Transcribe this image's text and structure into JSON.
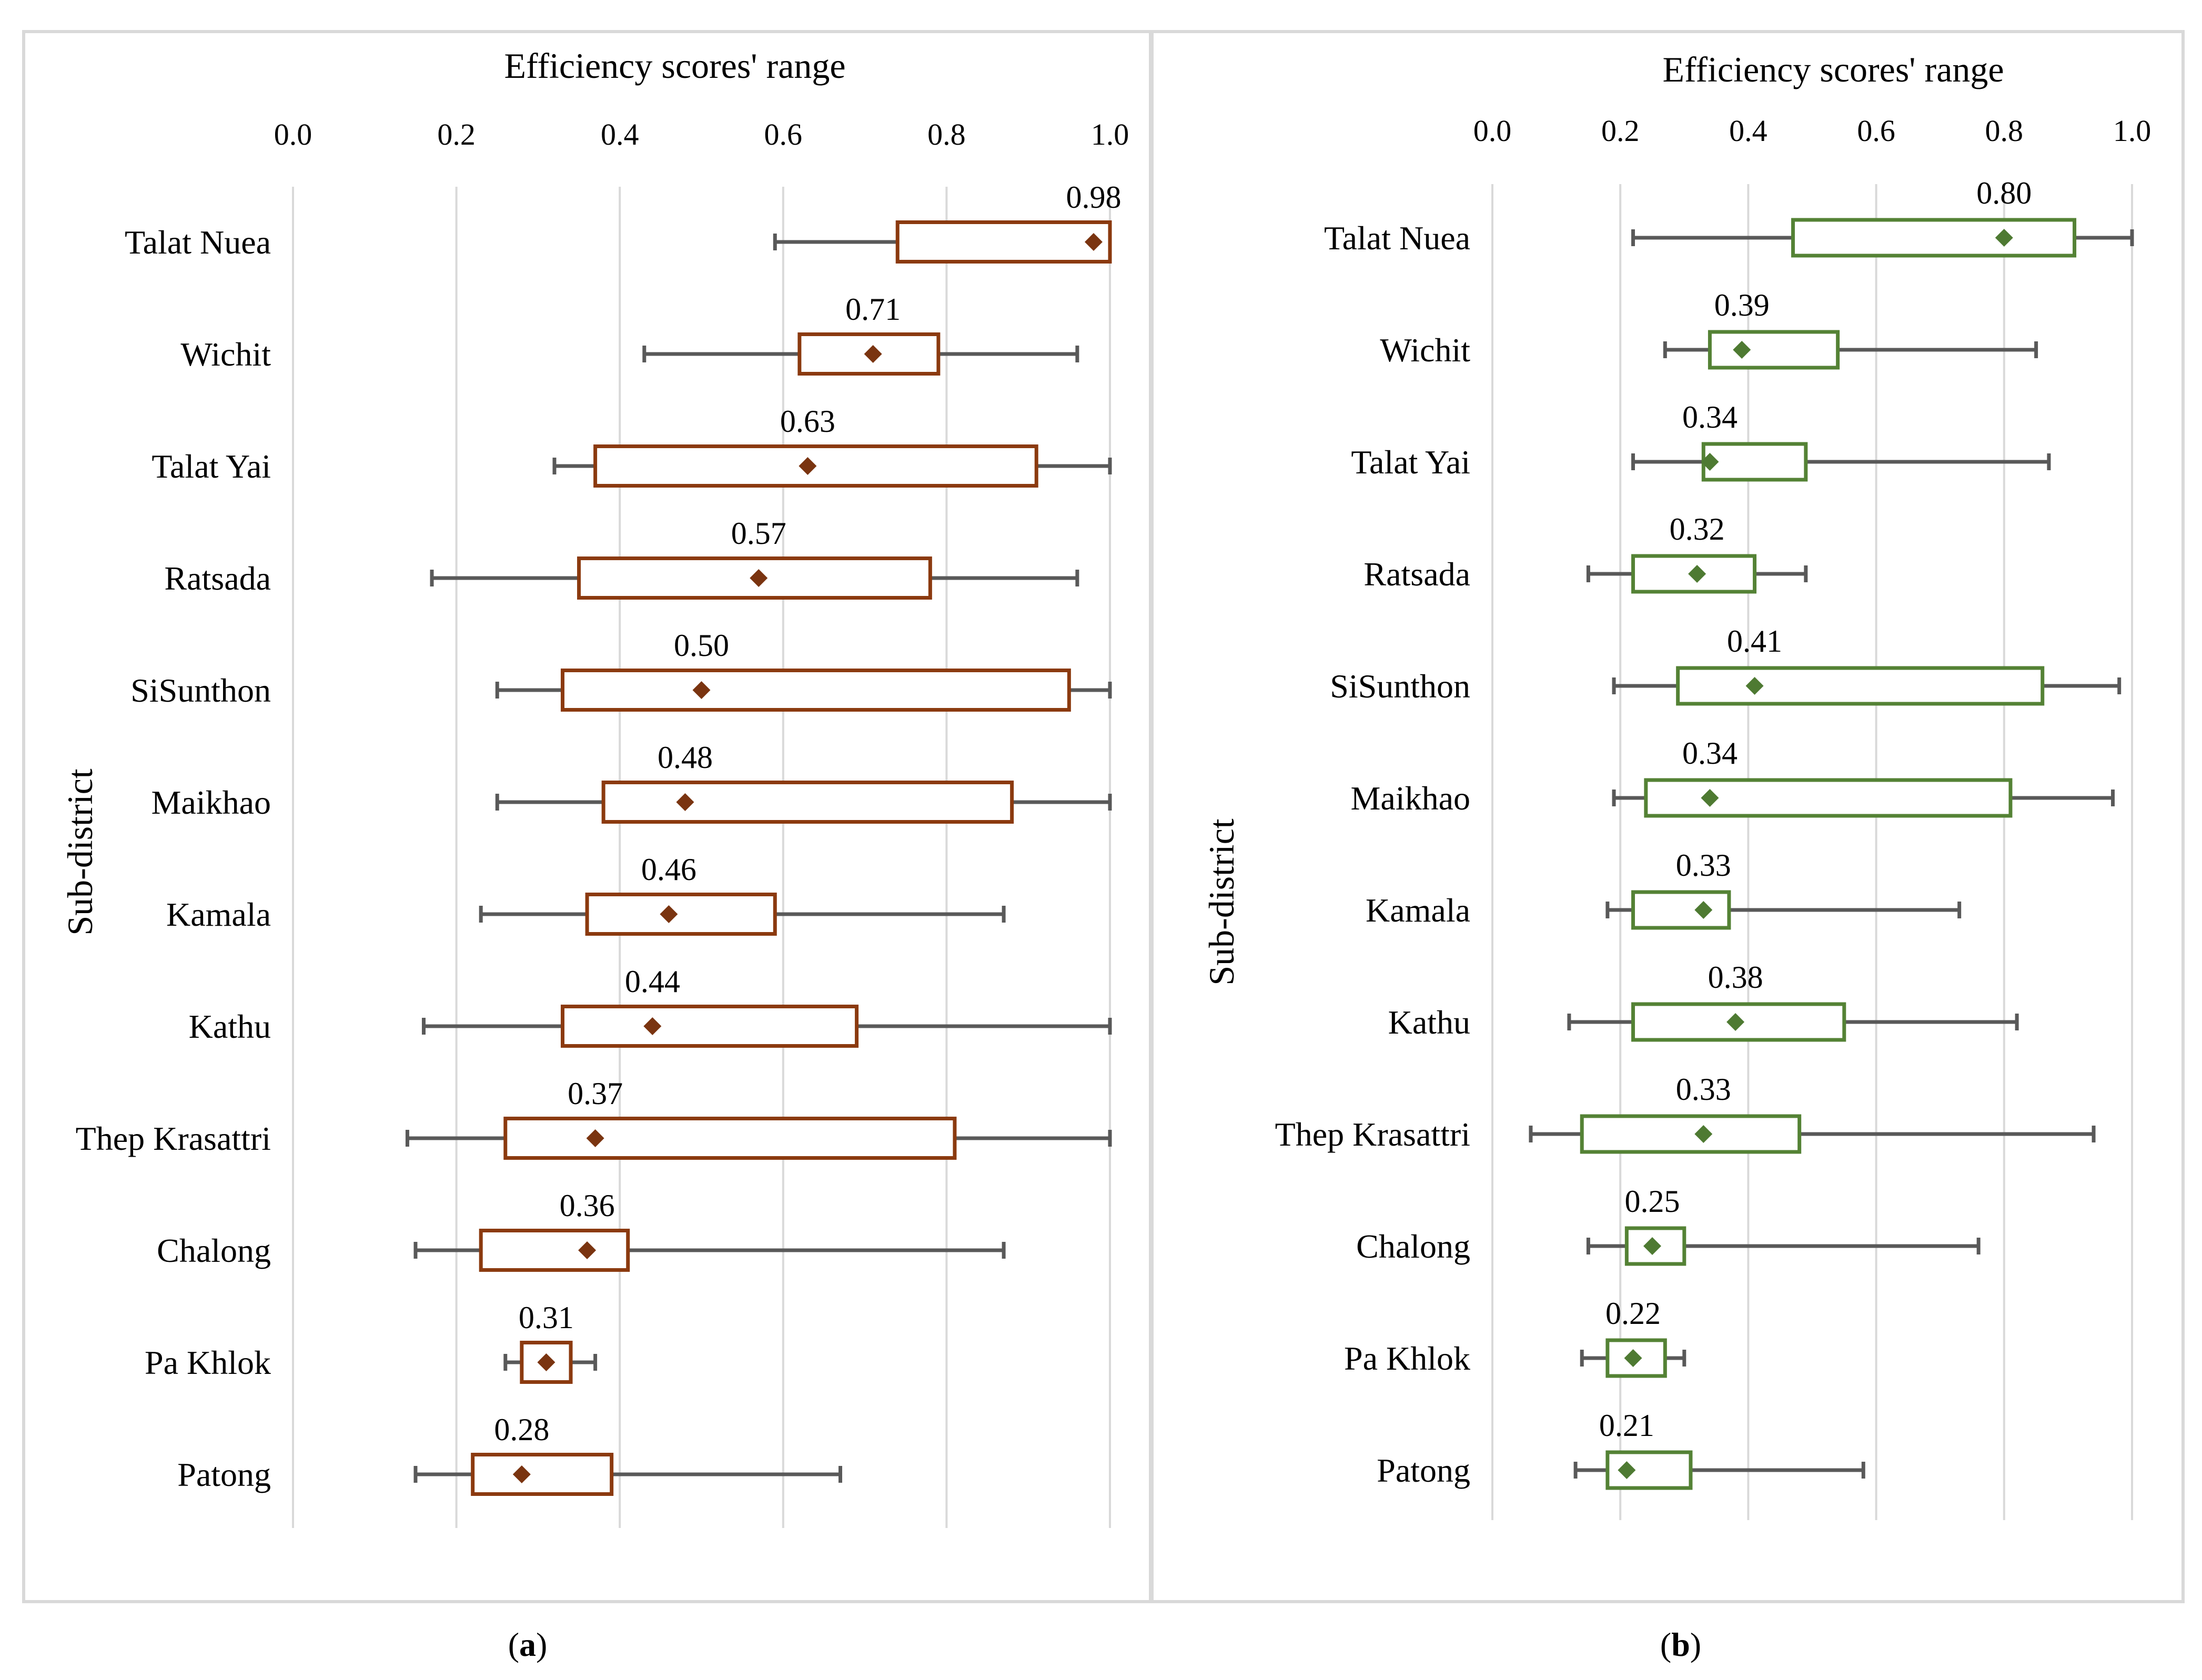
{
  "chart_data": [
    {
      "type": "box",
      "panel": "a",
      "title": "Efficiency scores' range",
      "xlabel": "Efficiency scores' range",
      "ylabel": "Sub-district",
      "xlim": [
        0.0,
        1.0
      ],
      "xticks": [
        "0.0",
        "0.2",
        "0.4",
        "0.6",
        "0.8",
        "1.0"
      ],
      "grid": true,
      "color": "#8B3A0F",
      "marker_color": "#7A3410",
      "whisker_color": "#595959",
      "categories": [
        "Talat Nuea",
        "Wichit",
        "Talat Yai",
        "Ratsada",
        "SiSunthon",
        "Maikhao",
        "Kamala",
        "Kathu",
        "Thep Krasattri",
        "Chalong",
        "Pa Khlok",
        "Patong"
      ],
      "boxes": [
        {
          "min": 0.59,
          "q1": 0.74,
          "q3": 1.0,
          "max": 1.0,
          "mean": 0.98,
          "label": "0.98"
        },
        {
          "min": 0.43,
          "q1": 0.62,
          "q3": 0.79,
          "max": 0.96,
          "mean": 0.71,
          "label": "0.71"
        },
        {
          "min": 0.32,
          "q1": 0.37,
          "q3": 0.91,
          "max": 1.0,
          "mean": 0.63,
          "label": "0.63"
        },
        {
          "min": 0.17,
          "q1": 0.35,
          "q3": 0.78,
          "max": 0.96,
          "mean": 0.57,
          "label": "0.57"
        },
        {
          "min": 0.25,
          "q1": 0.33,
          "q3": 0.95,
          "max": 1.0,
          "mean": 0.5,
          "label": "0.50"
        },
        {
          "min": 0.25,
          "q1": 0.38,
          "q3": 0.88,
          "max": 1.0,
          "mean": 0.48,
          "label": "0.48"
        },
        {
          "min": 0.23,
          "q1": 0.36,
          "q3": 0.59,
          "max": 0.87,
          "mean": 0.46,
          "label": "0.46"
        },
        {
          "min": 0.16,
          "q1": 0.33,
          "q3": 0.69,
          "max": 1.0,
          "mean": 0.44,
          "label": "0.44"
        },
        {
          "min": 0.14,
          "q1": 0.26,
          "q3": 0.81,
          "max": 1.0,
          "mean": 0.37,
          "label": "0.37"
        },
        {
          "min": 0.15,
          "q1": 0.23,
          "q3": 0.41,
          "max": 0.87,
          "mean": 0.36,
          "label": "0.36"
        },
        {
          "min": 0.26,
          "q1": 0.28,
          "q3": 0.34,
          "max": 0.37,
          "mean": 0.31,
          "label": "0.31"
        },
        {
          "min": 0.15,
          "q1": 0.22,
          "q3": 0.39,
          "max": 0.67,
          "mean": 0.28,
          "label": "0.28"
        }
      ]
    },
    {
      "type": "box",
      "panel": "b",
      "title": "Efficiency scores' range",
      "xlabel": "Efficiency scores' range",
      "ylabel": "Sub-district",
      "xlim": [
        0.0,
        1.0
      ],
      "xticks": [
        "0.0",
        "0.2",
        "0.4",
        "0.6",
        "0.8",
        "1.0"
      ],
      "grid": true,
      "color": "#548235",
      "marker_color": "#4E7A32",
      "whisker_color": "#595959",
      "categories": [
        "Talat Nuea",
        "Wichit",
        "Talat Yai",
        "Ratsada",
        "SiSunthon",
        "Maikhao",
        "Kamala",
        "Kathu",
        "Thep Krasattri",
        "Chalong",
        "Pa Khlok",
        "Patong"
      ],
      "boxes": [
        {
          "min": 0.22,
          "q1": 0.47,
          "q3": 0.91,
          "max": 1.0,
          "mean": 0.8,
          "label": "0.80"
        },
        {
          "min": 0.27,
          "q1": 0.34,
          "q3": 0.54,
          "max": 0.85,
          "mean": 0.39,
          "label": "0.39"
        },
        {
          "min": 0.22,
          "q1": 0.33,
          "q3": 0.49,
          "max": 0.87,
          "mean": 0.34,
          "label": "0.34"
        },
        {
          "min": 0.15,
          "q1": 0.22,
          "q3": 0.41,
          "max": 0.49,
          "mean": 0.32,
          "label": "0.32"
        },
        {
          "min": 0.19,
          "q1": 0.29,
          "q3": 0.86,
          "max": 0.98,
          "mean": 0.41,
          "label": "0.41"
        },
        {
          "min": 0.19,
          "q1": 0.24,
          "q3": 0.81,
          "max": 0.97,
          "mean": 0.34,
          "label": "0.34"
        },
        {
          "min": 0.18,
          "q1": 0.22,
          "q3": 0.37,
          "max": 0.73,
          "mean": 0.33,
          "label": "0.33"
        },
        {
          "min": 0.12,
          "q1": 0.22,
          "q3": 0.55,
          "max": 0.82,
          "mean": 0.38,
          "label": "0.38"
        },
        {
          "min": 0.06,
          "q1": 0.14,
          "q3": 0.48,
          "max": 0.94,
          "mean": 0.33,
          "label": "0.33"
        },
        {
          "min": 0.15,
          "q1": 0.21,
          "q3": 0.3,
          "max": 0.76,
          "mean": 0.25,
          "label": "0.25"
        },
        {
          "min": 0.14,
          "q1": 0.18,
          "q3": 0.27,
          "max": 0.3,
          "mean": 0.22,
          "label": "0.22"
        },
        {
          "min": 0.13,
          "q1": 0.18,
          "q3": 0.31,
          "max": 0.58,
          "mean": 0.21,
          "label": "0.21"
        }
      ]
    }
  ],
  "captions": [
    {
      "open": "(",
      "letter": "a",
      "close": ")"
    },
    {
      "open": "(",
      "letter": "b",
      "close": ")"
    }
  ]
}
